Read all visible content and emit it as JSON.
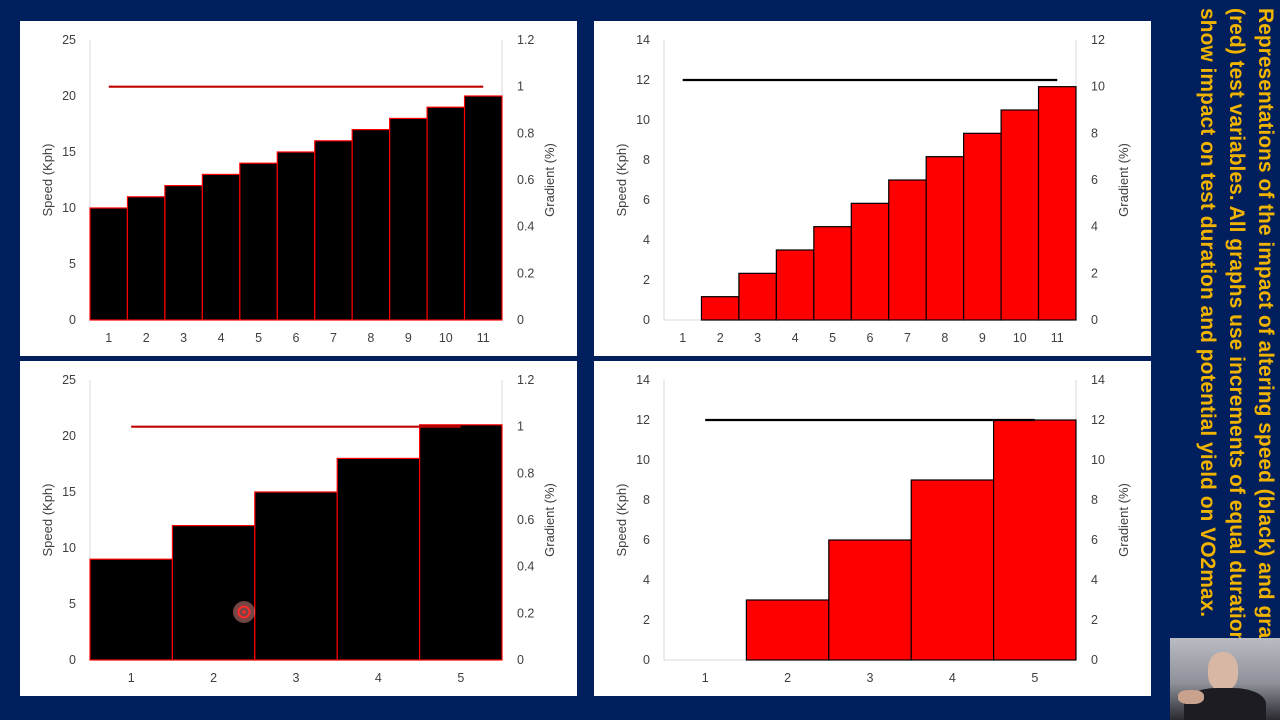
{
  "caption": "Representations of the impact of altering speed (black) and gradient (red) test variables. All graphs use increments of equal duration and show impact on test duration and potential yield on VO2max.",
  "chart_data": [
    {
      "type": "bar",
      "categories": [
        "1",
        "2",
        "3",
        "4",
        "5",
        "6",
        "7",
        "8",
        "9",
        "10",
        "11"
      ],
      "series": [
        {
          "type": "bar",
          "axis": "left",
          "values": [
            10,
            11,
            12,
            13,
            14,
            15,
            16,
            17,
            18,
            19,
            20
          ],
          "fill": "#000000",
          "edge": "#ff0000"
        },
        {
          "type": "line",
          "axis": "right",
          "values": [
            1,
            1,
            1,
            1,
            1,
            1,
            1,
            1,
            1,
            1,
            1
          ],
          "color": "#c00000"
        }
      ],
      "ylabel": "Speed (Kph)",
      "y2label": "Gradient (%)",
      "ylim": [
        0,
        25
      ],
      "yticks": [
        0,
        5,
        10,
        15,
        20,
        25
      ],
      "y2lim": [
        0,
        1.2
      ],
      "y2ticks": [
        "0",
        "0.2",
        "0.4",
        "0.6",
        "0.8",
        "1",
        "1.2"
      ]
    },
    {
      "type": "bar",
      "categories": [
        "1",
        "2",
        "3",
        "4",
        "5",
        "6",
        "7",
        "8",
        "9",
        "10",
        "11"
      ],
      "series": [
        {
          "type": "bar",
          "axis": "right",
          "values": [
            0,
            1,
            2,
            3,
            4,
            5,
            6,
            7,
            8,
            9,
            10
          ],
          "fill": "#ff0000",
          "edge": "#000000"
        },
        {
          "type": "line",
          "axis": "left",
          "values": [
            12,
            12,
            12,
            12,
            12,
            12,
            12,
            12,
            12,
            12,
            12
          ],
          "color": "#000000"
        }
      ],
      "ylabel": "Speed (Kph)",
      "y2label": "Gradient (%)",
      "ylim": [
        0,
        14
      ],
      "yticks": [
        0,
        2,
        4,
        6,
        8,
        10,
        12,
        14
      ],
      "y2lim": [
        0,
        12
      ],
      "y2ticks": [
        "0",
        "2",
        "4",
        "6",
        "8",
        "10",
        "12"
      ]
    },
    {
      "type": "bar",
      "categories": [
        "1",
        "2",
        "3",
        "4",
        "5"
      ],
      "series": [
        {
          "type": "bar",
          "axis": "left",
          "values": [
            9,
            12,
            15,
            18,
            21
          ],
          "fill": "#000000",
          "edge": "#ff0000"
        },
        {
          "type": "line",
          "axis": "right",
          "values": [
            1,
            1,
            1,
            1,
            1
          ],
          "color": "#c00000"
        }
      ],
      "ylabel": "Speed (Kph)",
      "y2label": "Gradient (%)",
      "ylim": [
        0,
        25
      ],
      "yticks": [
        0,
        5,
        10,
        15,
        20,
        25
      ],
      "y2lim": [
        0,
        1.2
      ],
      "y2ticks": [
        "0",
        "0.2",
        "0.4",
        "0.6",
        "0.8",
        "1",
        "1.2"
      ]
    },
    {
      "type": "bar",
      "categories": [
        "1",
        "2",
        "3",
        "4",
        "5"
      ],
      "series": [
        {
          "type": "bar",
          "axis": "right",
          "values": [
            0,
            3,
            6,
            9,
            12
          ],
          "fill": "#ff0000",
          "edge": "#000000"
        },
        {
          "type": "line",
          "axis": "left",
          "values": [
            12,
            12,
            12,
            12,
            12
          ],
          "color": "#000000"
        }
      ],
      "ylabel": "Speed (Kph)",
      "y2label": "Gradient (%)",
      "ylim": [
        0,
        14
      ],
      "yticks": [
        0,
        2,
        4,
        6,
        8,
        10,
        12,
        14
      ],
      "y2lim": [
        0,
        14
      ],
      "y2ticks": [
        "0",
        "2",
        "4",
        "6",
        "8",
        "10",
        "12",
        "14"
      ]
    }
  ]
}
